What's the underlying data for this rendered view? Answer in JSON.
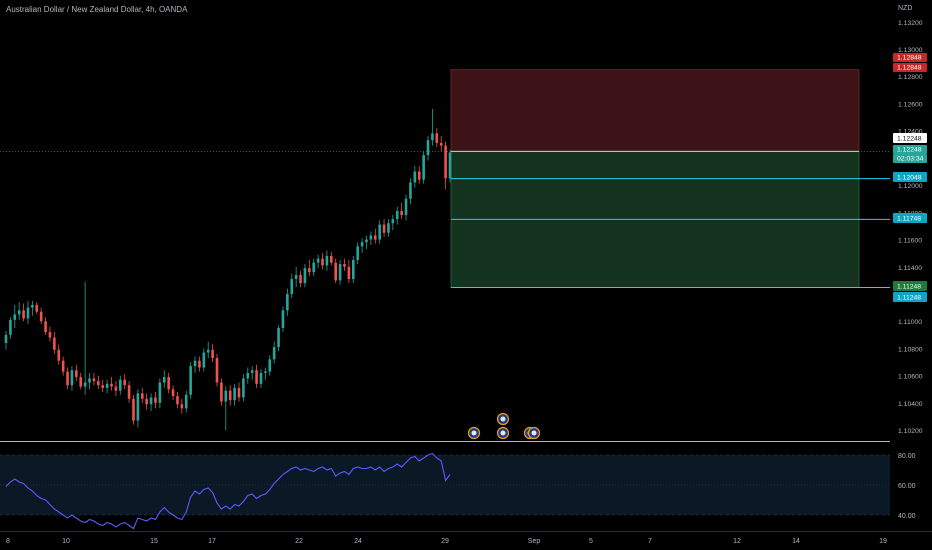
{
  "header": {
    "title": "Australian Dollar / New Zealand Dollar, 4h, OANDA",
    "currency": "NZD"
  },
  "colors": {
    "up": "#26a69a",
    "down": "#ef5350",
    "rsi": "#5b5bff",
    "stop_zone": "#3d1317",
    "target_zone": "#13331f",
    "tp_line": "#22d3ee",
    "stop_tag": "#c62828",
    "target_tag": "#1b7a3c"
  },
  "chart_data": [
    {
      "type": "candlestick",
      "title": "Australian Dollar / New Zealand Dollar, 4h, OANDA",
      "ylabel": "NZD",
      "ylim": [
        1.1012,
        1.1336
      ],
      "x_ticks": [
        "8",
        "10",
        "15",
        "17",
        "22",
        "24",
        "29",
        "Sep",
        "5",
        "7",
        "12",
        "14",
        "19"
      ],
      "y_ticks": [
        "1.13200",
        "1.13000",
        "1.12800",
        "1.12600",
        "1.12400",
        "1.12000",
        "1.11800",
        "1.11600",
        "1.11400",
        "1.11000",
        "1.10800",
        "1.10600",
        "1.10400",
        "1.10200"
      ],
      "candles_ohlc": [
        [
          1.1084,
          1.1093,
          1.1079,
          1.109
        ],
        [
          1.109,
          1.1103,
          1.1087,
          1.1101
        ],
        [
          1.1101,
          1.1112,
          1.1095,
          1.1105
        ],
        [
          1.1105,
          1.1114,
          1.1101,
          1.1108
        ],
        [
          1.1108,
          1.1113,
          1.11,
          1.1102
        ],
        [
          1.1102,
          1.1115,
          1.1098,
          1.111
        ],
        [
          1.111,
          1.1115,
          1.1104,
          1.1112
        ],
        [
          1.1112,
          1.1114,
          1.1105,
          1.1107
        ],
        [
          1.1107,
          1.111,
          1.1098,
          1.11
        ],
        [
          1.11,
          1.1103,
          1.109,
          1.1092
        ],
        [
          1.1092,
          1.1096,
          1.1085,
          1.1088
        ],
        [
          1.1088,
          1.1092,
          1.1076,
          1.1079
        ],
        [
          1.1079,
          1.1083,
          1.1068,
          1.1071
        ],
        [
          1.1071,
          1.1074,
          1.106,
          1.1063
        ],
        [
          1.1063,
          1.1066,
          1.105,
          1.1053
        ],
        [
          1.1053,
          1.1067,
          1.1049,
          1.1064
        ],
        [
          1.1064,
          1.1068,
          1.1056,
          1.1059
        ],
        [
          1.1059,
          1.1062,
          1.105,
          1.1052
        ],
        [
          1.1052,
          1.1129,
          1.1046,
          1.1055
        ],
        [
          1.1055,
          1.1062,
          1.105,
          1.1058
        ],
        [
          1.1058,
          1.1062,
          1.1053,
          1.1056
        ],
        [
          1.1056,
          1.106,
          1.105,
          1.1053
        ],
        [
          1.1053,
          1.1057,
          1.1048,
          1.1051
        ],
        [
          1.1051,
          1.1057,
          1.1047,
          1.1054
        ],
        [
          1.1054,
          1.1059,
          1.1049,
          1.1052
        ],
        [
          1.1052,
          1.1056,
          1.1045,
          1.1049
        ],
        [
          1.1049,
          1.106,
          1.1046,
          1.1057
        ],
        [
          1.1057,
          1.1061,
          1.105,
          1.1053
        ],
        [
          1.1053,
          1.1056,
          1.104,
          1.1043
        ],
        [
          1.1043,
          1.1046,
          1.1024,
          1.1027
        ],
        [
          1.1027,
          1.105,
          1.1022,
          1.1047
        ],
        [
          1.1047,
          1.1051,
          1.104,
          1.1043
        ],
        [
          1.1043,
          1.1047,
          1.1035,
          1.1039
        ],
        [
          1.1039,
          1.1047,
          1.1034,
          1.1044
        ],
        [
          1.1044,
          1.1048,
          1.1036,
          1.104
        ],
        [
          1.104,
          1.1058,
          1.1036,
          1.1055
        ],
        [
          1.1055,
          1.1064,
          1.1051,
          1.1059
        ],
        [
          1.1059,
          1.1062,
          1.1047,
          1.105
        ],
        [
          1.105,
          1.1053,
          1.1042,
          1.1045
        ],
        [
          1.1045,
          1.1048,
          1.1036,
          1.1039
        ],
        [
          1.1039,
          1.1043,
          1.1032,
          1.1036
        ],
        [
          1.1036,
          1.1049,
          1.1033,
          1.1046
        ],
        [
          1.1046,
          1.107,
          1.1043,
          1.1067
        ],
        [
          1.1067,
          1.1074,
          1.1062,
          1.1071
        ],
        [
          1.1071,
          1.1074,
          1.1063,
          1.1066
        ],
        [
          1.1066,
          1.108,
          1.1063,
          1.1077
        ],
        [
          1.1077,
          1.1085,
          1.1073,
          1.1079
        ],
        [
          1.1079,
          1.1083,
          1.107,
          1.1073
        ],
        [
          1.1073,
          1.1076,
          1.1052,
          1.1055
        ],
        [
          1.1055,
          1.1058,
          1.1038,
          1.1041
        ],
        [
          1.1041,
          1.1052,
          1.102,
          1.1049
        ],
        [
          1.1049,
          1.1053,
          1.1038,
          1.1042
        ],
        [
          1.1042,
          1.1054,
          1.1038,
          1.1051
        ],
        [
          1.1051,
          1.1055,
          1.1041,
          1.1044
        ],
        [
          1.1044,
          1.1061,
          1.1041,
          1.1058
        ],
        [
          1.1058,
          1.1066,
          1.1054,
          1.1062
        ],
        [
          1.1062,
          1.1067,
          1.1057,
          1.1064
        ],
        [
          1.1064,
          1.1068,
          1.1051,
          1.1054
        ],
        [
          1.1054,
          1.1065,
          1.1051,
          1.1062
        ],
        [
          1.1062,
          1.1066,
          1.1057,
          1.1063
        ],
        [
          1.1063,
          1.1075,
          1.106,
          1.1072
        ],
        [
          1.1072,
          1.1085,
          1.1069,
          1.1081
        ],
        [
          1.1081,
          1.1097,
          1.1078,
          1.1095
        ],
        [
          1.1095,
          1.1111,
          1.1092,
          1.1108
        ],
        [
          1.1108,
          1.1124,
          1.1104,
          1.112
        ],
        [
          1.112,
          1.1135,
          1.1117,
          1.1131
        ],
        [
          1.1131,
          1.114,
          1.1125,
          1.1134
        ],
        [
          1.1134,
          1.1137,
          1.1125,
          1.1128
        ],
        [
          1.1128,
          1.1142,
          1.1125,
          1.1139
        ],
        [
          1.1139,
          1.1145,
          1.1133,
          1.1136
        ],
        [
          1.1136,
          1.1146,
          1.1133,
          1.1143
        ],
        [
          1.1143,
          1.1149,
          1.1139,
          1.1146
        ],
        [
          1.1146,
          1.115,
          1.1138,
          1.1141
        ],
        [
          1.1141,
          1.1152,
          1.1137,
          1.1148
        ],
        [
          1.1148,
          1.1151,
          1.1141,
          1.1143
        ],
        [
          1.1143,
          1.1146,
          1.1128,
          1.113
        ],
        [
          1.113,
          1.1145,
          1.1127,
          1.1142
        ],
        [
          1.1142,
          1.1146,
          1.1137,
          1.114
        ],
        [
          1.114,
          1.1145,
          1.1128,
          1.1131
        ],
        [
          1.1131,
          1.1148,
          1.1128,
          1.1145
        ],
        [
          1.1145,
          1.1158,
          1.1142,
          1.1155
        ],
        [
          1.1155,
          1.1161,
          1.115,
          1.1158
        ],
        [
          1.1158,
          1.1163,
          1.1153,
          1.116
        ],
        [
          1.116,
          1.1166,
          1.1156,
          1.1163
        ],
        [
          1.1163,
          1.1168,
          1.1157,
          1.116
        ],
        [
          1.116,
          1.1174,
          1.1157,
          1.1171
        ],
        [
          1.1171,
          1.1175,
          1.1162,
          1.1165
        ],
        [
          1.1165,
          1.1175,
          1.1162,
          1.1172
        ],
        [
          1.1172,
          1.1178,
          1.1167,
          1.1175
        ],
        [
          1.1175,
          1.1184,
          1.1171,
          1.1181
        ],
        [
          1.1181,
          1.1187,
          1.1175,
          1.1178
        ],
        [
          1.1178,
          1.1193,
          1.1174,
          1.119
        ],
        [
          1.119,
          1.1205,
          1.1186,
          1.1202
        ],
        [
          1.1202,
          1.1214,
          1.1198,
          1.121
        ],
        [
          1.121,
          1.1214,
          1.1201,
          1.1204
        ],
        [
          1.1204,
          1.1225,
          1.1201,
          1.1222
        ],
        [
          1.1222,
          1.1236,
          1.1218,
          1.1233
        ],
        [
          1.1233,
          1.1256,
          1.1229,
          1.1238
        ],
        [
          1.1238,
          1.1242,
          1.1228,
          1.1231
        ],
        [
          1.1231,
          1.1236,
          1.1225,
          1.1229
        ],
        [
          1.1229,
          1.1232,
          1.1197,
          1.1205
        ],
        [
          1.1205,
          1.1226,
          1.1202,
          1.1224
        ]
      ],
      "rsi": {
        "levels": [
          "80.00",
          "60.00",
          "40.00"
        ],
        "ylim": [
          30,
          88
        ],
        "values": [
          59,
          62,
          64,
          62,
          61,
          58,
          56,
          53,
          51,
          50,
          47,
          44,
          42,
          40,
          38,
          40,
          38,
          36,
          35,
          37,
          36,
          34,
          33,
          35,
          34,
          32,
          34,
          35,
          33,
          31,
          38,
          37,
          36,
          38,
          37,
          42,
          45,
          42,
          40,
          38,
          37,
          42,
          52,
          56,
          54,
          57,
          58,
          55,
          48,
          44,
          46,
          44,
          47,
          46,
          49,
          53,
          54,
          51,
          53,
          54,
          57,
          61,
          64,
          67,
          69,
          71,
          72,
          70,
          71,
          70,
          69,
          71,
          72,
          70,
          71,
          66,
          68,
          69,
          67,
          71,
          72,
          71,
          71,
          72,
          70,
          72,
          69,
          71,
          72,
          74,
          72,
          75,
          78,
          79,
          76,
          78,
          80,
          81,
          78,
          76,
          63,
          67
        ]
      },
      "position": {
        "entry": "1.12248",
        "stop": "1.12848",
        "tp1": "1.12048",
        "tp2": "1.11748",
        "target": "1.11248",
        "target_alt": "1.11248",
        "countdown": "02:03:34"
      }
    }
  ]
}
